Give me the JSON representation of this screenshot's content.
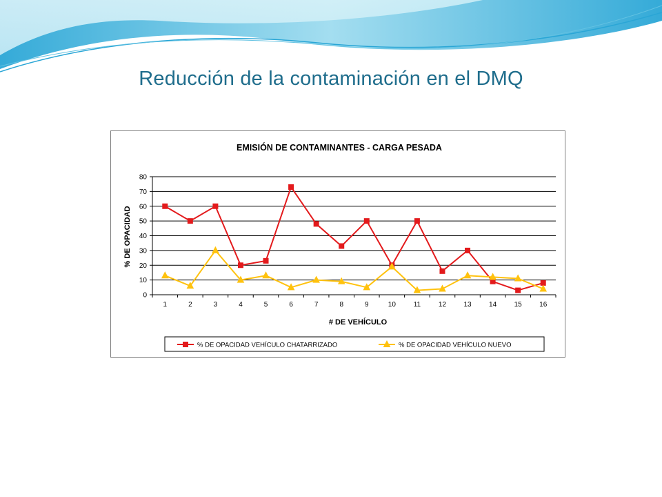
{
  "slide": {
    "title": "Reducción de la contaminación en el DMQ"
  },
  "colors": {
    "title": "#1f6d8c",
    "banner_light": "#d8f1f7",
    "banner_mid": "#7fd0e8",
    "banner_dark": "#2aa6d6",
    "series_old": "#e31a1c",
    "series_new": "#ffc20e"
  },
  "chart_data": {
    "type": "line",
    "title": "EMISIÓN DE CONTAMINANTES - CARGA PESADA",
    "xlabel": "# DE VEHÍCULO",
    "ylabel": "% DE OPACIDAD",
    "categories": [
      "1",
      "2",
      "3",
      "4",
      "5",
      "6",
      "7",
      "8",
      "9",
      "10",
      "11",
      "12",
      "13",
      "14",
      "15",
      "16"
    ],
    "ylim": [
      0,
      80
    ],
    "yticks": [
      "0",
      "10",
      "20",
      "30",
      "40",
      "50",
      "60",
      "70",
      "80"
    ],
    "grid": true,
    "legend_position": "bottom",
    "series": [
      {
        "name": "% DE OPACIDAD VEHÍCULO CHATARRIZADO",
        "color": "#e31a1c",
        "marker": "square",
        "values": [
          60,
          50,
          60,
          20,
          23,
          73,
          48,
          33,
          50,
          20,
          50,
          16,
          30,
          9,
          3,
          8
        ]
      },
      {
        "name": "% DE OPACIDAD VEHÍCULO NUEVO",
        "color": "#ffc20e",
        "marker": "triangle",
        "values": [
          13,
          6,
          30,
          10,
          13,
          5,
          10,
          9,
          5,
          19,
          3,
          4,
          13,
          12,
          11,
          4
        ]
      }
    ]
  }
}
